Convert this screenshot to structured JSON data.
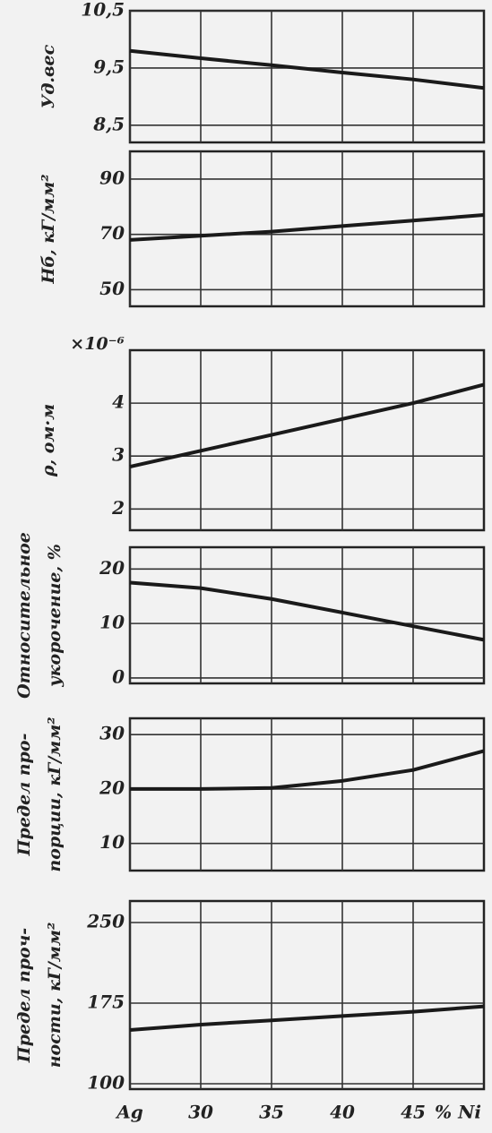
{
  "chart_data": [
    {
      "type": "line",
      "ylabel": [
        "Уд.вес"
      ],
      "x": [
        25,
        30,
        35,
        40,
        45,
        50
      ],
      "values": [
        9.8,
        9.67,
        9.55,
        9.42,
        9.3,
        9.15
      ],
      "xlim": [
        25,
        50
      ],
      "ylim": [
        8.2,
        10.5
      ],
      "yticks": [
        {
          "value": 10.5,
          "label": "10,5"
        },
        {
          "value": 9.5,
          "label": "9,5"
        },
        {
          "value": 8.5,
          "label": "8,5"
        }
      ],
      "color": "#1a1a1a",
      "grid": true
    },
    {
      "type": "line",
      "ylabel": [
        "Hб, кГ/мм²"
      ],
      "x": [
        25,
        30,
        35,
        40,
        45,
        50
      ],
      "values": [
        68,
        69.5,
        71,
        73,
        75,
        77
      ],
      "xlim": [
        25,
        50
      ],
      "ylim": [
        44,
        100
      ],
      "yticks": [
        90,
        70,
        50
      ],
      "color": "#1a1a1a",
      "grid": true
    },
    {
      "type": "line",
      "ylabel": [
        "ρ, ом·м"
      ],
      "annotation": "×10⁻⁶",
      "x": [
        25,
        30,
        35,
        40,
        45,
        50
      ],
      "values": [
        2.8,
        3.1,
        3.4,
        3.7,
        4.0,
        4.35
      ],
      "xlim": [
        25,
        50
      ],
      "ylim": [
        1.6,
        5
      ],
      "yticks": [
        4,
        3,
        2
      ],
      "color": "#1a1a1a",
      "grid": true
    },
    {
      "type": "line",
      "ylabel": [
        "Относительное",
        "укорочение, %"
      ],
      "x": [
        25,
        30,
        35,
        40,
        45,
        50
      ],
      "values": [
        17.5,
        16.5,
        14.5,
        12,
        9.5,
        7
      ],
      "xlim": [
        25,
        50
      ],
      "ylim": [
        -1,
        24
      ],
      "yticks": [
        20,
        10,
        0
      ],
      "color": "#1a1a1a",
      "grid": true
    },
    {
      "type": "line",
      "ylabel": [
        "Предел про-",
        "порции, кГ/мм²"
      ],
      "x": [
        25,
        30,
        35,
        40,
        45,
        50
      ],
      "values": [
        20,
        20,
        20.2,
        21.5,
        23.5,
        27
      ],
      "xlim": [
        25,
        50
      ],
      "ylim": [
        5,
        33
      ],
      "yticks": [
        30,
        20,
        10
      ],
      "color": "#1a1a1a",
      "grid": true
    },
    {
      "type": "line",
      "ylabel": [
        "Предел проч-",
        "ности, кГ/мм²"
      ],
      "x": [
        25,
        30,
        35,
        40,
        45,
        50
      ],
      "values": [
        150,
        155,
        159,
        163,
        167,
        172
      ],
      "xlim": [
        25,
        50
      ],
      "ylim": [
        95,
        270
      ],
      "yticks": [
        250,
        175,
        100
      ],
      "color": "#1a1a1a",
      "grid": true,
      "xticks": [
        {
          "value": 25,
          "label": "Ag"
        },
        30,
        35,
        40,
        45
      ],
      "xlabel": "% Ni"
    }
  ]
}
